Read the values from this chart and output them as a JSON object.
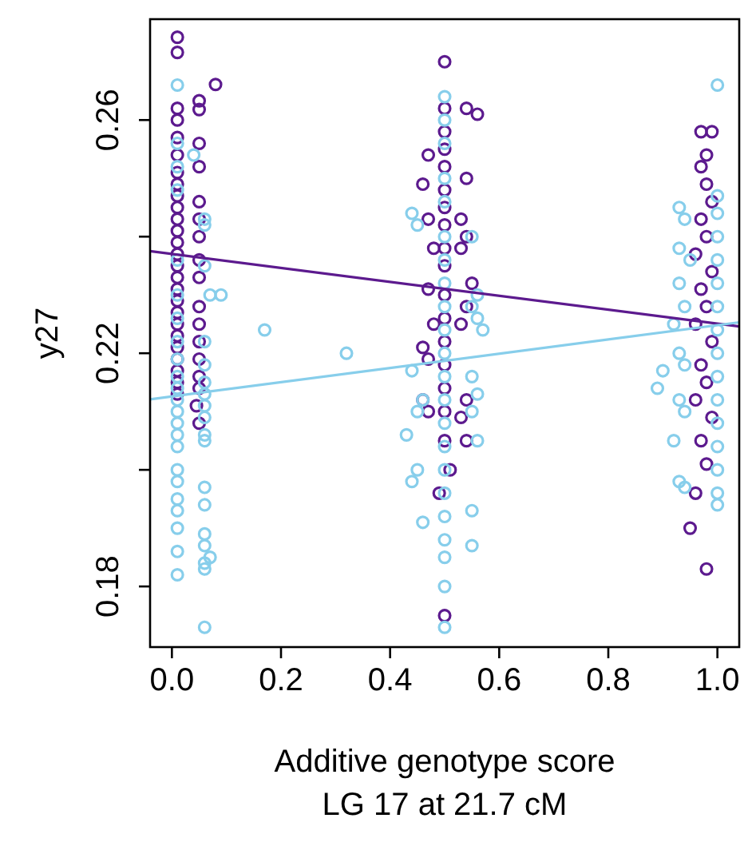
{
  "chart_data": {
    "type": "scatter",
    "xlabel": "Additive genotype score\nLG 17 at 21.7 cM",
    "ylabel": "y27",
    "xlim": [
      -0.04,
      1.04
    ],
    "ylim": [
      0.1696,
      0.2773
    ],
    "xticks": [
      {
        "value": 0,
        "label": "0.0"
      },
      {
        "value": 0.2,
        "label": "0.2"
      },
      {
        "value": 0.4,
        "label": "0.4"
      },
      {
        "value": 0.6,
        "label": "0.6"
      },
      {
        "value": 0.8,
        "label": "0.8"
      },
      {
        "value": 1,
        "label": "1.0"
      }
    ],
    "yticks": [
      0.18,
      {
        "value": 0.2,
        "label": null
      },
      0.22,
      {
        "value": 0.24,
        "label": null
      },
      0.26
    ],
    "grid": false,
    "marker": "circle",
    "series": [
      {
        "color": "#5c1a8e",
        "x": [
          0.01,
          0.01,
          0.01,
          0.01,
          0.01,
          0.01,
          0.01,
          0.01,
          0.01,
          0.01,
          0.01,
          0.01,
          0.01,
          0.01,
          0.01,
          0.01,
          0.01,
          0.01,
          0.01,
          0.01,
          0.01,
          0.01,
          0.01,
          0.01,
          0.01,
          0.01,
          0.08,
          0.05,
          0.05,
          0.05,
          0.05,
          0.05,
          0.05,
          0.05,
          0.05,
          0.05,
          0.05,
          0.05,
          0.05,
          0.05,
          0.05,
          0.05,
          0.045,
          0.05,
          0.5,
          0.5,
          0.5,
          0.5,
          0.5,
          0.5,
          0.5,
          0.5,
          0.5,
          0.5,
          0.5,
          0.5,
          0.5,
          0.5,
          0.5,
          0.5,
          0.5,
          0.51,
          0.49,
          0.5,
          0.54,
          0.56,
          0.54,
          0.53,
          0.54,
          0.53,
          0.55,
          0.54,
          0.53,
          0.54,
          0.53,
          0.54,
          0.47,
          0.46,
          0.47,
          0.48,
          0.47,
          0.48,
          0.46,
          0.47,
          0.46,
          0.47,
          0.97,
          0.99,
          0.98,
          0.97,
          0.98,
          0.99,
          0.97,
          0.98,
          0.96,
          0.99,
          0.97,
          0.98,
          0.96,
          0.99,
          0.97,
          0.98,
          0.96,
          0.99,
          0.97,
          0.98,
          0.96,
          0.95,
          0.98
        ],
        "values": [
          0.2742,
          0.2716,
          0.262,
          0.26,
          0.257,
          0.254,
          0.251,
          0.249,
          0.247,
          0.245,
          0.243,
          0.241,
          0.239,
          0.237,
          0.235,
          0.233,
          0.231,
          0.229,
          0.227,
          0.225,
          0.223,
          0.221,
          0.219,
          0.217,
          0.215,
          0.213,
          0.2661,
          0.2633,
          0.2618,
          0.256,
          0.252,
          0.246,
          0.243,
          0.24,
          0.236,
          0.233,
          0.228,
          0.225,
          0.222,
          0.219,
          0.216,
          0.214,
          0.211,
          0.208,
          0.27,
          0.262,
          0.258,
          0.255,
          0.252,
          0.248,
          0.245,
          0.242,
          0.238,
          0.235,
          0.23,
          0.226,
          0.222,
          0.218,
          0.214,
          0.21,
          0.205,
          0.2,
          0.196,
          0.175,
          0.262,
          0.261,
          0.25,
          0.243,
          0.24,
          0.238,
          0.232,
          0.228,
          0.225,
          0.212,
          0.209,
          0.205,
          0.254,
          0.249,
          0.243,
          0.238,
          0.231,
          0.225,
          0.221,
          0.219,
          0.212,
          0.21,
          0.258,
          0.258,
          0.254,
          0.252,
          0.249,
          0.246,
          0.243,
          0.24,
          0.237,
          0.234,
          0.231,
          0.228,
          0.225,
          0.222,
          0.218,
          0.215,
          0.212,
          0.209,
          0.205,
          0.201,
          0.196,
          0.19,
          0.183
        ]
      },
      {
        "color": "#87ceeb",
        "x": [
          0.01,
          0.01,
          0.01,
          0.01,
          0.01,
          0.01,
          0.01,
          0.01,
          0.01,
          0.01,
          0.01,
          0.01,
          0.01,
          0.01,
          0.01,
          0.01,
          0.01,
          0.01,
          0.01,
          0.01,
          0.01,
          0.01,
          0.01,
          0.04,
          0.06,
          0.06,
          0.06,
          0.07,
          0.09,
          0.06,
          0.06,
          0.06,
          0.06,
          0.06,
          0.06,
          0.06,
          0.06,
          0.06,
          0.06,
          0.06,
          0.06,
          0.06,
          0.06,
          0.07,
          0.06,
          0.17,
          0.32,
          0.5,
          0.5,
          0.5,
          0.5,
          0.5,
          0.5,
          0.5,
          0.5,
          0.5,
          0.5,
          0.5,
          0.5,
          0.5,
          0.5,
          0.5,
          0.5,
          0.5,
          0.5,
          0.5,
          0.5,
          0.5,
          0.5,
          0.44,
          0.45,
          0.44,
          0.46,
          0.45,
          0.43,
          0.45,
          0.44,
          0.46,
          0.55,
          0.56,
          0.55,
          0.56,
          0.57,
          0.55,
          0.56,
          0.55,
          0.56,
          0.55,
          0.55,
          1,
          1,
          1,
          1,
          1,
          1,
          1,
          1,
          1,
          1,
          1,
          1,
          1,
          1,
          1,
          1,
          0.93,
          0.94,
          0.93,
          0.95,
          0.93,
          0.94,
          0.92,
          0.93,
          0.94,
          0.9,
          0.89,
          0.93,
          0.94,
          0.92,
          0.93,
          0.94
        ],
        "values": [
          0.266,
          0.256,
          0.252,
          0.248,
          0.236,
          0.23,
          0.226,
          0.222,
          0.219,
          0.216,
          0.214,
          0.212,
          0.21,
          0.208,
          0.206,
          0.204,
          0.2,
          0.198,
          0.195,
          0.193,
          0.19,
          0.186,
          0.182,
          0.254,
          0.243,
          0.242,
          0.235,
          0.23,
          0.23,
          0.222,
          0.218,
          0.215,
          0.213,
          0.211,
          0.209,
          0.206,
          0.205,
          0.197,
          0.194,
          0.189,
          0.187,
          0.184,
          0.183,
          0.185,
          0.173,
          0.224,
          0.22,
          0.264,
          0.26,
          0.256,
          0.25,
          0.246,
          0.24,
          0.236,
          0.232,
          0.228,
          0.224,
          0.22,
          0.216,
          0.212,
          0.208,
          0.204,
          0.2,
          0.196,
          0.192,
          0.188,
          0.185,
          0.18,
          0.173,
          0.244,
          0.242,
          0.217,
          0.212,
          0.21,
          0.206,
          0.2,
          0.198,
          0.191,
          0.24,
          0.23,
          0.228,
          0.226,
          0.224,
          0.216,
          0.213,
          0.21,
          0.205,
          0.193,
          0.187,
          0.266,
          0.247,
          0.244,
          0.24,
          0.236,
          0.232,
          0.228,
          0.224,
          0.22,
          0.216,
          0.212,
          0.208,
          0.204,
          0.2,
          0.196,
          0.194,
          0.245,
          0.243,
          0.238,
          0.236,
          0.232,
          0.228,
          0.225,
          0.22,
          0.218,
          0.217,
          0.214,
          0.212,
          0.21,
          0.205,
          0.198,
          0.197
        ]
      },
      {
        "type": "line",
        "marker": "none",
        "color": "#5c1a8e",
        "x": [
          -0.04,
          1.04
        ],
        "values": [
          0.2375,
          0.2246
        ]
      },
      {
        "type": "line",
        "marker": "none",
        "color": "#87ceeb",
        "x": [
          -0.04,
          1.04
        ],
        "values": [
          0.2121,
          0.2253
        ]
      }
    ]
  }
}
